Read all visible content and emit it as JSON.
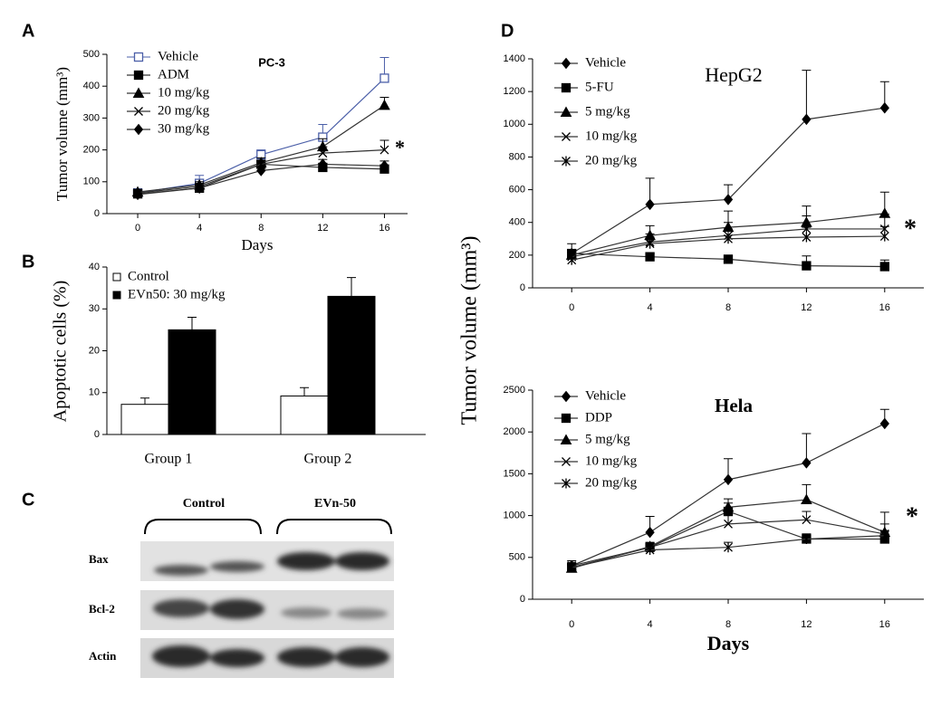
{
  "chart_data": [
    {
      "type": "line",
      "panel": "A",
      "title": "PC-3",
      "xlabel": "Days",
      "ylabel": "Tumor volume (mm³)",
      "annotation": "*",
      "x": [
        0,
        4,
        8,
        12,
        16
      ],
      "xlim": [
        -2,
        17.5
      ],
      "xticks": [
        0,
        4,
        8,
        12,
        16
      ],
      "ylim": [
        0,
        500
      ],
      "yticks": [
        0,
        100,
        200,
        300,
        400,
        500
      ],
      "series": [
        {
          "name": "Vehicle",
          "color": "#4b5fa8",
          "marker": "square-open",
          "values": [
            65,
            95,
            185,
            240,
            425
          ],
          "errors": [
            10,
            25,
            15,
            40,
            65
          ]
        },
        {
          "name": "ADM",
          "color": "#000000",
          "marker": "square",
          "values": [
            62,
            80,
            155,
            145,
            140
          ],
          "errors": [
            5,
            5,
            10,
            10,
            10
          ]
        },
        {
          "name": "10 mg/kg",
          "color": "#000000",
          "marker": "triangle",
          "values": [
            68,
            90,
            160,
            210,
            340
          ],
          "errors": [
            8,
            10,
            15,
            25,
            25
          ]
        },
        {
          "name": "20 mg/kg",
          "color": "#000000",
          "marker": "x",
          "values": [
            65,
            85,
            155,
            190,
            200
          ],
          "errors": [
            6,
            10,
            12,
            20,
            30
          ]
        },
        {
          "name": "30 mg/kg",
          "color": "#000000",
          "marker": "diamond",
          "values": [
            60,
            80,
            135,
            155,
            150
          ],
          "errors": [
            5,
            8,
            10,
            15,
            15
          ]
        }
      ]
    },
    {
      "type": "bar",
      "panel": "B",
      "ylabel": "Apoptotic cells (%)",
      "categories": [
        "Group 1",
        "Group 2"
      ],
      "ylim": [
        0,
        40
      ],
      "yticks": [
        0,
        10,
        20,
        30,
        40
      ],
      "series": [
        {
          "name": "Control",
          "color": "#ffffff",
          "values": [
            7.2,
            9.2
          ],
          "errors": [
            1.5,
            2
          ]
        },
        {
          "name": "EVn50: 30 mg/kg",
          "color": "#000000",
          "values": [
            25,
            33
          ],
          "errors": [
            3,
            4.5
          ]
        }
      ]
    },
    {
      "type": "line",
      "panel": "D",
      "title": "HepG2",
      "ylabel": "Tumor volume (mm³)",
      "annotation": "*",
      "x": [
        0,
        4,
        8,
        12,
        16
      ],
      "xlim": [
        -2,
        18
      ],
      "xticks": [
        0,
        4,
        8,
        12,
        16
      ],
      "ylim": [
        0,
        1400
      ],
      "yticks": [
        0,
        200,
        400,
        600,
        800,
        1000,
        1200,
        1400
      ],
      "series": [
        {
          "name": "Vehicle",
          "color": "#000000",
          "marker": "diamond",
          "values": [
            210,
            510,
            540,
            1030,
            1100
          ],
          "errors": [
            60,
            160,
            90,
            300,
            160
          ]
        },
        {
          "name": "5-FU",
          "color": "#000000",
          "marker": "square",
          "values": [
            210,
            190,
            175,
            135,
            130
          ],
          "errors": [
            20,
            20,
            15,
            60,
            40
          ]
        },
        {
          "name": "5 mg/kg",
          "color": "#000000",
          "marker": "triangle",
          "values": [
            200,
            320,
            370,
            400,
            455
          ],
          "errors": [
            30,
            60,
            100,
            100,
            130
          ]
        },
        {
          "name": "10 mg/kg",
          "color": "#000000",
          "marker": "x",
          "values": [
            190,
            280,
            320,
            360,
            360
          ],
          "errors": [
            30,
            50,
            80,
            80,
            90
          ]
        },
        {
          "name": "20 mg/kg",
          "color": "#000000",
          "marker": "asterisk",
          "values": [
            170,
            270,
            300,
            310,
            315
          ],
          "errors": [
            30,
            40,
            60,
            60,
            60
          ]
        }
      ]
    },
    {
      "type": "line",
      "title": "Hela",
      "xlabel": "Days",
      "annotation": "*",
      "x": [
        0,
        4,
        8,
        12,
        16
      ],
      "xlim": [
        -2,
        18
      ],
      "xticks": [
        0,
        4,
        8,
        12,
        16
      ],
      "ylim": [
        0,
        2500
      ],
      "yticks": [
        0,
        500,
        1000,
        1500,
        2000,
        2500
      ],
      "series": [
        {
          "name": "Vehicle",
          "color": "#000000",
          "marker": "diamond",
          "values": [
            400,
            800,
            1430,
            1630,
            2100
          ],
          "errors": [
            60,
            190,
            250,
            350,
            170
          ]
        },
        {
          "name": "DDP",
          "color": "#000000",
          "marker": "square",
          "values": [
            380,
            620,
            1050,
            720,
            720
          ],
          "errors": [
            40,
            50,
            100,
            60,
            60
          ]
        },
        {
          "name": "5 mg/kg",
          "color": "#000000",
          "marker": "triangle",
          "values": [
            370,
            630,
            1100,
            1190,
            800
          ],
          "errors": [
            40,
            50,
            100,
            180,
            240
          ]
        },
        {
          "name": "10 mg/kg",
          "color": "#000000",
          "marker": "x",
          "values": [
            400,
            620,
            900,
            950,
            780
          ],
          "errors": [
            40,
            50,
            100,
            100,
            120
          ]
        },
        {
          "name": "20 mg/kg",
          "color": "#000000",
          "marker": "asterisk",
          "values": [
            380,
            590,
            620,
            720,
            760
          ],
          "errors": [
            40,
            40,
            60,
            60,
            60
          ]
        }
      ]
    }
  ],
  "blot": {
    "panel": "C",
    "groups": [
      "Control",
      "EVn-50"
    ],
    "rows": [
      "Bax",
      "Bcl-2",
      "Actin"
    ]
  }
}
